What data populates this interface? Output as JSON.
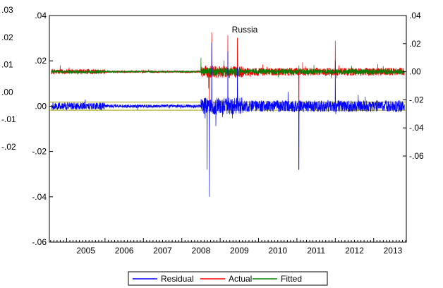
{
  "chart_data": {
    "type": "line",
    "title": "Russia",
    "x_ticks": [
      "2005",
      "2006",
      "2007",
      "2008",
      "2009",
      "2010",
      "2011",
      "2012",
      "2013"
    ],
    "x_range": [
      2004.55,
      2013.85
    ],
    "left_outer_axis": {
      "series": [
        "Actual",
        "Fitted"
      ],
      "ylim": [
        -0.02,
        0.03
      ],
      "ticks": [
        ".03",
        ".02",
        ".01",
        ".00",
        "-.01",
        "-.02"
      ]
    },
    "left_inner_axis": {
      "series": [
        "Residual"
      ],
      "ylim": [
        -0.06,
        0.04
      ],
      "ticks": [
        ".04",
        ".02",
        ".00",
        "-.02",
        "-.04",
        "-.06"
      ]
    },
    "right_axis": {
      "series": [
        "Actual",
        "Fitted"
      ],
      "ylim": [
        -0.06,
        0.04
      ],
      "ticks": [
        ".04",
        ".02",
        ".00",
        "-.02",
        "-.04",
        "-.06"
      ]
    },
    "residual_band": [
      -0.0018,
      0.0018
    ],
    "series": [
      {
        "name": "Residual",
        "color": "#0000ff",
        "axis": "left_inner",
        "baseline": 0.0,
        "noise": 0.0016,
        "spikes": [
          {
            "date": 2008.72,
            "value": -0.04
          },
          {
            "date": 2008.78,
            "value": 0.028
          },
          {
            "date": 2008.66,
            "value": -0.028
          },
          {
            "date": 2009.2,
            "value": 0.024
          },
          {
            "date": 2009.45,
            "value": 0.017
          },
          {
            "date": 2011.05,
            "value": -0.028
          },
          {
            "date": 2012.0,
            "value": 0.02
          }
        ]
      },
      {
        "name": "Actual",
        "color": "#ff0000",
        "axis": "right",
        "baseline": 0.0,
        "noise": 0.0018,
        "spikes": [
          {
            "date": 2008.72,
            "value": -0.04
          },
          {
            "date": 2008.78,
            "value": 0.028
          },
          {
            "date": 2009.2,
            "value": 0.026
          },
          {
            "date": 2009.45,
            "value": 0.024
          },
          {
            "date": 2011.05,
            "value": -0.03
          },
          {
            "date": 2012.0,
            "value": 0.022
          }
        ]
      },
      {
        "name": "Fitted",
        "color": "#008000",
        "axis": "right",
        "baseline": 0.0,
        "noise": 0.0012,
        "spikes": [
          {
            "date": 2008.5,
            "value": 0.01
          },
          {
            "date": 2008.7,
            "value": -0.012
          },
          {
            "date": 2009.1,
            "value": 0.008
          }
        ]
      }
    ],
    "legend": {
      "position": "bottom-center",
      "items": [
        "Residual",
        "Actual",
        "Fitted"
      ]
    }
  }
}
